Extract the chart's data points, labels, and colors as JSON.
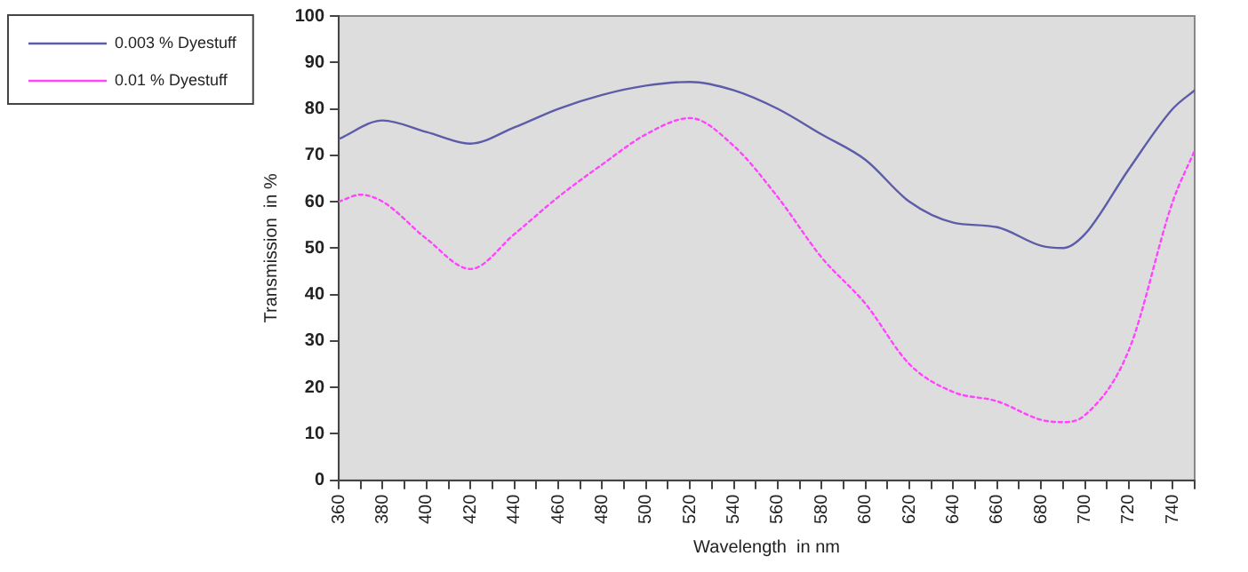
{
  "chart_data": {
    "type": "line",
    "xlabel": "Wavelength  in nm",
    "ylabel": "Transmission  in %",
    "xlim": [
      360,
      750
    ],
    "xticks": [
      360,
      {
        "value": 370,
        "label": null
      },
      380,
      {
        "value": 390,
        "label": null
      },
      400,
      {
        "value": 410,
        "label": null
      },
      420,
      {
        "value": 430,
        "label": null
      },
      440,
      {
        "value": 450,
        "label": null
      },
      460,
      {
        "value": 470,
        "label": null
      },
      480,
      {
        "value": 490,
        "label": null
      },
      500,
      {
        "value": 510,
        "label": null
      },
      520,
      {
        "value": 530,
        "label": null
      },
      540,
      {
        "value": 550,
        "label": null
      },
      560,
      {
        "value": 570,
        "label": null
      },
      580,
      {
        "value": 590,
        "label": null
      },
      600,
      {
        "value": 610,
        "label": null
      },
      620,
      {
        "value": 630,
        "label": null
      },
      640,
      {
        "value": 650,
        "label": null
      },
      660,
      {
        "value": 670,
        "label": null
      },
      680,
      {
        "value": 690,
        "label": null
      },
      700,
      {
        "value": 710,
        "label": null
      },
      720,
      {
        "value": 730,
        "label": null
      },
      740,
      {
        "value": 750,
        "label": null
      }
    ],
    "ylim": [
      0,
      100
    ],
    "yticks": [
      0,
      10,
      20,
      30,
      40,
      50,
      60,
      70,
      80,
      90,
      100
    ],
    "grid": false,
    "legend": "top left",
    "marker": "none",
    "series": [
      {
        "name": "0.003 % Dyestuff",
        "color": "#5c5ca8",
        "line_style": "solid",
        "x": [
          360,
          380,
          400,
          420,
          440,
          460,
          480,
          500,
          520,
          540,
          560,
          580,
          600,
          620,
          640,
          660,
          680,
          690,
          700,
          720,
          740,
          750
        ],
        "values": [
          73.5,
          77.5,
          75,
          72.5,
          76,
          80,
          83,
          85,
          85.8,
          84,
          80,
          74.5,
          69,
          60,
          55.5,
          54.5,
          50.5,
          50,
          53,
          67,
          80,
          84
        ]
      },
      {
        "name": "0.01 % Dyestuff",
        "color": "#ff44ff",
        "line_style": "dotted",
        "x": [
          360,
          370,
          380,
          400,
          420,
          440,
          460,
          480,
          500,
          520,
          540,
          560,
          580,
          600,
          620,
          640,
          660,
          680,
          690,
          700,
          720,
          740,
          750
        ],
        "values": [
          60,
          61.5,
          60,
          52,
          45.5,
          53,
          61,
          68,
          74.5,
          78,
          72,
          61,
          48,
          38,
          25,
          19,
          17,
          13,
          12.5,
          14,
          28,
          60,
          71
        ]
      }
    ]
  }
}
